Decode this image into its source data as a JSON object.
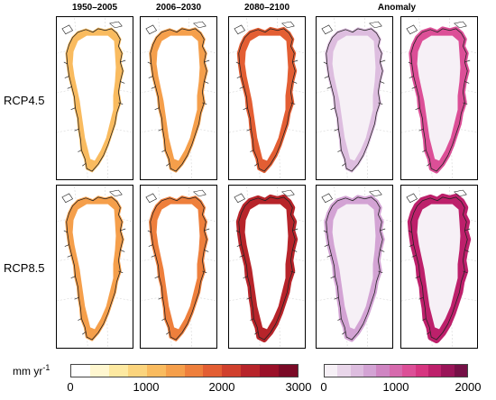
{
  "columns": [
    "1950–2005",
    "2006–2030",
    "2080–2100"
  ],
  "anomaly_title": "Anomaly",
  "rows": [
    "RCP4.5",
    "RCP8.5"
  ],
  "colorbar_unit": "mm yr",
  "colorbar_unit_exp": "-1",
  "colorbar_left_ticks": [
    "0",
    "1000",
    "2000",
    "3000"
  ],
  "colorbar_right_ticks": [
    "0",
    "1000",
    "2000"
  ],
  "colors": {
    "left_scale": [
      "#ffffff",
      "#fff7d0",
      "#fde9a1",
      "#fbd47d",
      "#f9bb5f",
      "#f59f4b",
      "#ee7f3c",
      "#e35e33",
      "#d0402d",
      "#b7242a",
      "#9a1028",
      "#7a0a26"
    ],
    "right_scale": [
      "#f6f0f6",
      "#e9d6ea",
      "#ddbddf",
      "#d3a3d4",
      "#cf85c2",
      "#d66aad",
      "#dc4f97",
      "#d63580",
      "#bd206b",
      "#9a1458",
      "#751046"
    ]
  }
}
